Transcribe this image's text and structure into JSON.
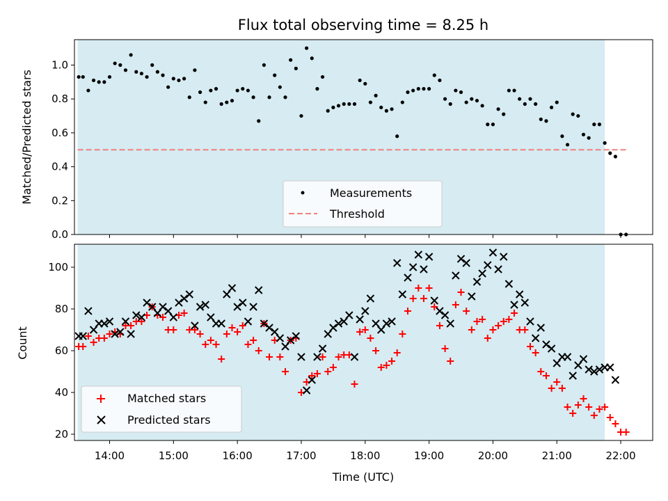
{
  "chart_data": [
    {
      "type": "scatter",
      "title": "Flux total observing time = 8.25 h",
      "xlabel": "",
      "ylabel": "Matched/Predicted stars",
      "xlim": [
        "13:27",
        "22:30"
      ],
      "ylim": [
        0,
        1.15
      ],
      "grid": false,
      "legend": "bottom-center",
      "xticks": [
        "14:00",
        "15:00",
        "16:00",
        "17:00",
        "18:00",
        "19:00",
        "20:00",
        "21:00",
        "22:00"
      ],
      "yticks": [
        "0.0",
        "0.2",
        "0.4",
        "0.6",
        "0.8",
        "1.0"
      ],
      "shaded_span": {
        "from": "13:30",
        "to": "21:45",
        "color": "#add8e6"
      },
      "series": [
        {
          "name": "Measurements",
          "marker": "dot",
          "color": "#000000",
          "x": [
            "13:31",
            "13:35",
            "13:40",
            "13:45",
            "13:50",
            "13:55",
            "14:00",
            "14:05",
            "14:10",
            "14:15",
            "14:20",
            "14:25",
            "14:30",
            "14:35",
            "14:40",
            "14:45",
            "14:50",
            "14:55",
            "15:00",
            "15:05",
            "15:10",
            "15:15",
            "15:20",
            "15:25",
            "15:30",
            "15:35",
            "15:40",
            "15:45",
            "15:50",
            "15:55",
            "16:00",
            "16:05",
            "16:10",
            "16:15",
            "16:20",
            "16:25",
            "16:30",
            "16:35",
            "16:40",
            "16:45",
            "16:50",
            "16:55",
            "17:00",
            "17:05",
            "17:10",
            "17:15",
            "17:20",
            "17:25",
            "17:30",
            "17:35",
            "17:40",
            "17:45",
            "17:50",
            "17:55",
            "18:00",
            "18:05",
            "18:10",
            "18:15",
            "18:20",
            "18:25",
            "18:30",
            "18:35",
            "18:40",
            "18:45",
            "18:50",
            "18:55",
            "19:00",
            "19:05",
            "19:10",
            "19:15",
            "19:20",
            "19:25",
            "19:30",
            "19:35",
            "19:40",
            "19:45",
            "19:50",
            "19:55",
            "20:00",
            "20:05",
            "20:10",
            "20:15",
            "20:20",
            "20:25",
            "20:30",
            "20:35",
            "20:40",
            "20:45",
            "20:50",
            "20:55",
            "21:00",
            "21:05",
            "21:10",
            "21:15",
            "21:20",
            "21:25",
            "21:30",
            "21:35",
            "21:40",
            "21:45",
            "21:50",
            "21:55",
            "22:00",
            "22:05"
          ],
          "values": [
            0.93,
            0.93,
            0.85,
            0.91,
            0.9,
            0.9,
            0.93,
            1.01,
            1.0,
            0.97,
            1.06,
            0.96,
            0.95,
            0.93,
            1.0,
            0.96,
            0.94,
            0.87,
            0.92,
            0.91,
            0.92,
            0.81,
            0.97,
            0.84,
            0.78,
            0.85,
            0.86,
            0.77,
            0.78,
            0.79,
            0.85,
            0.86,
            0.85,
            0.81,
            0.67,
            1.0,
            0.81,
            0.94,
            0.87,
            0.81,
            1.03,
            0.98,
            0.7,
            1.1,
            1.04,
            0.86,
            0.93,
            0.73,
            0.75,
            0.76,
            0.77,
            0.77,
            0.77,
            0.91,
            0.89,
            0.78,
            0.82,
            0.75,
            0.73,
            0.74,
            0.58,
            0.78,
            0.84,
            0.85,
            0.86,
            0.86,
            0.86,
            0.94,
            0.91,
            0.8,
            0.77,
            0.85,
            0.84,
            0.78,
            0.8,
            0.79,
            0.76,
            0.65,
            0.65,
            0.74,
            0.71,
            0.85,
            0.85,
            0.8,
            0.77,
            0.8,
            0.77,
            0.68,
            0.67,
            0.75,
            0.78,
            0.58,
            0.53,
            0.71,
            0.7,
            0.59,
            0.57,
            0.65,
            0.65,
            0.54,
            0.48,
            0.46,
            0.0,
            0.0
          ]
        },
        {
          "name": "Threshold",
          "marker": "dashed-line",
          "color": "#f08080",
          "x": [
            "13:30",
            "22:05"
          ],
          "values": [
            0.5,
            0.5
          ]
        }
      ]
    },
    {
      "type": "scatter",
      "title": "",
      "xlabel": "Time (UTC)",
      "ylabel": "Count",
      "xlim": [
        "13:27",
        "22:30"
      ],
      "ylim": [
        17,
        111
      ],
      "grid": false,
      "legend": "bottom-left",
      "xticks": [
        "14:00",
        "15:00",
        "16:00",
        "17:00",
        "18:00",
        "19:00",
        "20:00",
        "21:00",
        "22:00"
      ],
      "yticks": [
        "20",
        "40",
        "60",
        "80",
        "100"
      ],
      "shaded_span": {
        "from": "13:30",
        "to": "21:45",
        "color": "#add8e6"
      },
      "series": [
        {
          "name": "Matched stars",
          "marker": "plus",
          "color": "#ff0000",
          "x": [
            "13:31",
            "13:35",
            "13:40",
            "13:45",
            "13:50",
            "13:55",
            "14:00",
            "14:05",
            "14:10",
            "14:15",
            "14:20",
            "14:25",
            "14:30",
            "14:35",
            "14:40",
            "14:45",
            "14:50",
            "14:55",
            "15:00",
            "15:05",
            "15:10",
            "15:15",
            "15:20",
            "15:25",
            "15:30",
            "15:35",
            "15:40",
            "15:45",
            "15:50",
            "15:55",
            "16:00",
            "16:05",
            "16:10",
            "16:15",
            "16:20",
            "16:25",
            "16:30",
            "16:35",
            "16:40",
            "16:45",
            "16:50",
            "16:55",
            "17:00",
            "17:05",
            "17:10",
            "17:15",
            "17:20",
            "17:25",
            "17:30",
            "17:35",
            "17:40",
            "17:45",
            "17:50",
            "17:55",
            "18:00",
            "18:05",
            "18:10",
            "18:15",
            "18:20",
            "18:25",
            "18:30",
            "18:35",
            "18:40",
            "18:45",
            "18:50",
            "18:55",
            "19:00",
            "19:05",
            "19:10",
            "19:15",
            "19:20",
            "19:25",
            "19:30",
            "19:35",
            "19:40",
            "19:45",
            "19:50",
            "19:55",
            "20:00",
            "20:05",
            "20:10",
            "20:15",
            "20:20",
            "20:25",
            "20:30",
            "20:35",
            "20:40",
            "20:45",
            "20:50",
            "20:55",
            "21:00",
            "21:05",
            "21:10",
            "21:15",
            "21:20",
            "21:25",
            "21:30",
            "21:35",
            "21:40",
            "21:45",
            "21:50",
            "21:55",
            "22:00",
            "22:05"
          ],
          "values": [
            62,
            62,
            67,
            64,
            66,
            66,
            68,
            69,
            68,
            72,
            72,
            74,
            74,
            77,
            81,
            77,
            76,
            70,
            70,
            77,
            78,
            70,
            70,
            68,
            63,
            65,
            63,
            56,
            68,
            71,
            69,
            72,
            63,
            65,
            60,
            73,
            57,
            65,
            57,
            50,
            65,
            66,
            40,
            45,
            48,
            49,
            57,
            50,
            52,
            57,
            58,
            58,
            44,
            69,
            70,
            66,
            60,
            52,
            53,
            55,
            59,
            68,
            79,
            85,
            90,
            85,
            90,
            81,
            72,
            61,
            55,
            82,
            88,
            79,
            70,
            74,
            75,
            66,
            70,
            72,
            74,
            75,
            78,
            70,
            70,
            62,
            59,
            50,
            48,
            42,
            45,
            42,
            33,
            30,
            34,
            37,
            33,
            29,
            32,
            33,
            28,
            25,
            21,
            21
          ]
        },
        {
          "name": "Predicted stars",
          "marker": "x",
          "color": "#000000",
          "x": [
            "13:31",
            "13:35",
            "13:40",
            "13:45",
            "13:50",
            "13:55",
            "14:00",
            "14:05",
            "14:10",
            "14:15",
            "14:20",
            "14:25",
            "14:30",
            "14:35",
            "14:40",
            "14:45",
            "14:50",
            "14:55",
            "15:00",
            "15:05",
            "15:10",
            "15:15",
            "15:20",
            "15:25",
            "15:30",
            "15:35",
            "15:40",
            "15:45",
            "15:50",
            "15:55",
            "16:00",
            "16:05",
            "16:10",
            "16:15",
            "16:20",
            "16:25",
            "16:30",
            "16:35",
            "16:40",
            "16:45",
            "16:50",
            "16:55",
            "17:00",
            "17:05",
            "17:10",
            "17:15",
            "17:20",
            "17:25",
            "17:30",
            "17:35",
            "17:40",
            "17:45",
            "17:50",
            "17:55",
            "18:00",
            "18:05",
            "18:10",
            "18:15",
            "18:20",
            "18:25",
            "18:30",
            "18:35",
            "18:40",
            "18:45",
            "18:50",
            "18:55",
            "19:00",
            "19:05",
            "19:10",
            "19:15",
            "19:20",
            "19:25",
            "19:30",
            "19:35",
            "19:40",
            "19:45",
            "19:50",
            "19:55",
            "20:00",
            "20:05",
            "20:10",
            "20:15",
            "20:20",
            "20:25",
            "20:30",
            "20:35",
            "20:40",
            "20:45",
            "20:50",
            "20:55",
            "21:00",
            "21:05",
            "21:10",
            "21:15",
            "21:20",
            "21:25",
            "21:30",
            "21:35",
            "21:40",
            "21:45",
            "21:50",
            "21:55"
          ],
          "values": [
            67,
            67,
            79,
            70,
            73,
            73,
            74,
            68,
            69,
            74,
            68,
            77,
            76,
            83,
            81,
            78,
            81,
            79,
            76,
            83,
            85,
            87,
            72,
            81,
            82,
            76,
            73,
            73,
            87,
            90,
            81,
            83,
            74,
            81,
            89,
            73,
            71,
            69,
            66,
            62,
            65,
            67,
            57,
            41,
            46,
            57,
            61,
            68,
            71,
            73,
            74,
            77,
            57,
            75,
            79,
            85,
            73,
            70,
            73,
            74,
            102,
            87,
            95,
            100,
            106,
            99,
            105,
            84,
            79,
            77,
            73,
            96,
            104,
            102,
            86,
            93,
            97,
            101,
            107,
            99,
            105,
            92,
            82,
            87,
            83,
            74,
            66,
            71,
            63,
            61,
            54,
            57,
            57,
            48,
            53,
            56,
            51,
            50,
            51,
            52,
            52,
            46
          ]
        }
      ]
    }
  ]
}
